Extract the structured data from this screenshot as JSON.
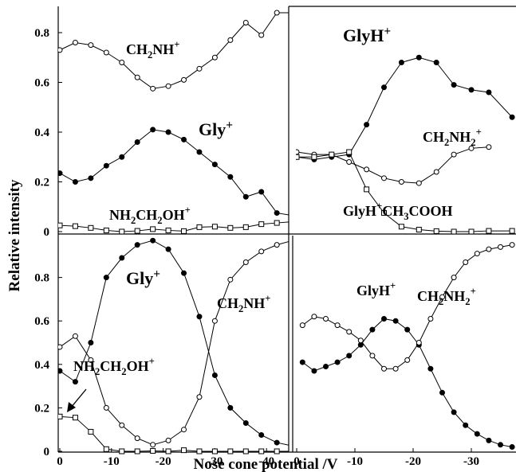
{
  "figure": {
    "ylabel": "Relative intensity",
    "xlabel": "Nose cone potential /V",
    "yticks": [
      "0.8",
      "0.6",
      "0.4",
      "0.2",
      "0"
    ],
    "xticks_left": [
      "0",
      "-10",
      "-20",
      "-30",
      "-40"
    ],
    "xticks_right": [
      "0",
      "-10",
      "-20",
      "-30"
    ]
  },
  "chart_data": [
    {
      "type": "line",
      "panel": "top-left",
      "xlim": [
        0,
        -45
      ],
      "ylim": [
        0,
        0.9
      ],
      "series": [
        {
          "name_parts": [
            [
              "CH",
              ""
            ],
            [
              "2",
              "sub"
            ],
            [
              "NH",
              ""
            ],
            [
              "+",
              "sup"
            ]
          ],
          "marker": "open-circle",
          "x": [
            0,
            -3,
            -6,
            -9,
            -12,
            -15,
            -18,
            -21,
            -24,
            -27,
            -30,
            -33,
            -36,
            -39,
            -42,
            -45
          ],
          "y": [
            0.73,
            0.76,
            0.75,
            0.72,
            0.68,
            0.62,
            0.575,
            0.585,
            0.61,
            0.655,
            0.7,
            0.77,
            0.84,
            0.79,
            0.88,
            0.88
          ]
        },
        {
          "name_parts": [
            [
              "Gly",
              ""
            ],
            [
              "+",
              "sup"
            ]
          ],
          "marker": "filled-circle",
          "x": [
            0,
            -3,
            -6,
            -9,
            -12,
            -15,
            -18,
            -21,
            -24,
            -27,
            -30,
            -33,
            -36,
            -39,
            -42,
            -45
          ],
          "y": [
            0.235,
            0.2,
            0.215,
            0.265,
            0.3,
            0.36,
            0.41,
            0.4,
            0.37,
            0.32,
            0.27,
            0.22,
            0.14,
            0.16,
            0.075,
            0.065
          ]
        },
        {
          "name_parts": [
            [
              "NH",
              ""
            ],
            [
              "2",
              "sub"
            ],
            [
              "CH",
              ""
            ],
            [
              "2",
              "sub"
            ],
            [
              "OH",
              ""
            ],
            [
              "+",
              "sup"
            ]
          ],
          "marker": "open-square",
          "x": [
            0,
            -3,
            -6,
            -9,
            -12,
            -15,
            -18,
            -21,
            -24,
            -27,
            -30,
            -33,
            -36,
            -39,
            -42,
            -45
          ],
          "y": [
            0.025,
            0.022,
            0.015,
            0.005,
            0.0,
            0.003,
            0.01,
            0.005,
            0.002,
            0.018,
            0.02,
            0.015,
            0.018,
            0.03,
            0.035,
            0.04
          ]
        }
      ]
    },
    {
      "type": "line",
      "panel": "top-right",
      "xlim": [
        0,
        -37
      ],
      "ylim": [
        0,
        0.9
      ],
      "series": [
        {
          "name_parts": [
            [
              "GlyH",
              ""
            ],
            [
              "+",
              "sup"
            ]
          ],
          "marker": "filled-circle",
          "x": [
            0,
            -3,
            -6,
            -9,
            -12,
            -15,
            -18,
            -21,
            -24,
            -27,
            -30,
            -33,
            -37
          ],
          "y": [
            0.3,
            0.29,
            0.3,
            0.31,
            0.43,
            0.58,
            0.68,
            0.7,
            0.68,
            0.59,
            0.57,
            0.56,
            0.46
          ]
        },
        {
          "name_parts": [
            [
              "CH",
              ""
            ],
            [
              "2",
              "sub"
            ],
            [
              "NH",
              ""
            ],
            [
              "2",
              "sub"
            ],
            [
              "+",
              "sup"
            ]
          ],
          "marker": "open-circle",
          "x": [
            0,
            -3,
            -6,
            -9,
            -12,
            -15,
            -18,
            -21,
            -24,
            -27,
            -30,
            -33
          ],
          "y": [
            0.32,
            0.31,
            0.31,
            0.28,
            0.25,
            0.215,
            0.2,
            0.195,
            0.24,
            0.31,
            0.335,
            0.34
          ]
        },
        {
          "name_parts": [
            [
              "GlyH",
              ""
            ],
            [
              "+",
              "sup"
            ],
            [
              "CH",
              ""
            ],
            [
              "3",
              "sub"
            ],
            [
              "COOH",
              ""
            ]
          ],
          "marker": "open-square",
          "x": [
            0,
            -3,
            -6,
            -9,
            -12,
            -15,
            -18,
            -21,
            -24,
            -27,
            -30,
            -33,
            -37
          ],
          "y": [
            0.3,
            0.3,
            0.31,
            0.32,
            0.17,
            0.075,
            0.02,
            0.008,
            0.002,
            0.0,
            0.0,
            0.003,
            0.003
          ]
        }
      ]
    },
    {
      "type": "line",
      "panel": "bottom-left",
      "xlim": [
        0,
        -45
      ],
      "ylim": [
        0,
        0.98
      ],
      "series": [
        {
          "name_parts": [
            [
              "Gly",
              ""
            ],
            [
              "+",
              "sup"
            ]
          ],
          "marker": "filled-circle",
          "x": [
            0,
            -3,
            -6,
            -9,
            -12,
            -15,
            -18,
            -21,
            -24,
            -27,
            -30,
            -33,
            -36,
            -39,
            -42,
            -45
          ],
          "y": [
            0.37,
            0.32,
            0.5,
            0.8,
            0.89,
            0.95,
            0.97,
            0.93,
            0.82,
            0.62,
            0.35,
            0.2,
            0.13,
            0.075,
            0.04,
            0.025
          ]
        },
        {
          "name_parts": [
            [
              "CH",
              ""
            ],
            [
              "2",
              "sub"
            ],
            [
              "NH",
              ""
            ],
            [
              "+",
              "sup"
            ]
          ],
          "marker": "open-circle",
          "x": [
            0,
            -3,
            -6,
            -9,
            -12,
            -15,
            -18,
            -21,
            -24,
            -27,
            -30,
            -33,
            -36,
            -39,
            -42,
            -45
          ],
          "y": [
            0.48,
            0.53,
            0.42,
            0.2,
            0.12,
            0.06,
            0.03,
            0.05,
            0.1,
            0.25,
            0.6,
            0.79,
            0.87,
            0.92,
            0.95,
            0.97
          ]
        },
        {
          "name_parts": [
            [
              "NH",
              ""
            ],
            [
              "2",
              "sub"
            ],
            [
              "CH",
              ""
            ],
            [
              "2",
              "sub"
            ],
            [
              "OH",
              ""
            ],
            [
              "+",
              "sup"
            ]
          ],
          "marker": "open-square",
          "x": [
            0,
            -3,
            -6,
            -9,
            -12,
            -15,
            -18,
            -21,
            -24,
            -27,
            -30,
            -33,
            -36,
            -39,
            -42,
            -45
          ],
          "y": [
            0.16,
            0.155,
            0.09,
            0.01,
            0.0,
            0.0,
            0.002,
            0.0,
            0.005,
            0.0,
            0.0,
            0.0,
            0.0,
            0.0,
            0.0,
            0.0
          ]
        }
      ],
      "annotation": "arrow from NH2CH2OH+ label to the square series"
    },
    {
      "type": "line",
      "panel": "bottom-right",
      "xlim": [
        0,
        -37
      ],
      "ylim": [
        0,
        0.98
      ],
      "series": [
        {
          "name_parts": [
            [
              "GlyH",
              ""
            ],
            [
              "+",
              "sup"
            ]
          ],
          "marker": "filled-circle",
          "x": [
            -1,
            -3,
            -5,
            -7,
            -9,
            -11,
            -13,
            -15,
            -17,
            -19,
            -21,
            -23,
            -25,
            -27,
            -29,
            -31,
            -33,
            -35,
            -37
          ],
          "y": [
            0.41,
            0.37,
            0.39,
            0.41,
            0.44,
            0.49,
            0.56,
            0.61,
            0.6,
            0.56,
            0.49,
            0.38,
            0.27,
            0.18,
            0.12,
            0.08,
            0.05,
            0.03,
            0.02
          ]
        },
        {
          "name_parts": [
            [
              "CH",
              ""
            ],
            [
              "2",
              "sub"
            ],
            [
              "NH",
              ""
            ],
            [
              "2",
              "sub"
            ],
            [
              "+",
              "sup"
            ]
          ],
          "marker": "open-circle",
          "x": [
            -1,
            -3,
            -5,
            -7,
            -9,
            -11,
            -13,
            -15,
            -17,
            -19,
            -21,
            -23,
            -25,
            -27,
            -29,
            -31,
            -33,
            -35,
            -37
          ],
          "y": [
            0.58,
            0.62,
            0.61,
            0.58,
            0.55,
            0.51,
            0.44,
            0.38,
            0.38,
            0.42,
            0.5,
            0.61,
            0.71,
            0.8,
            0.87,
            0.91,
            0.93,
            0.94,
            0.95
          ]
        }
      ]
    }
  ]
}
